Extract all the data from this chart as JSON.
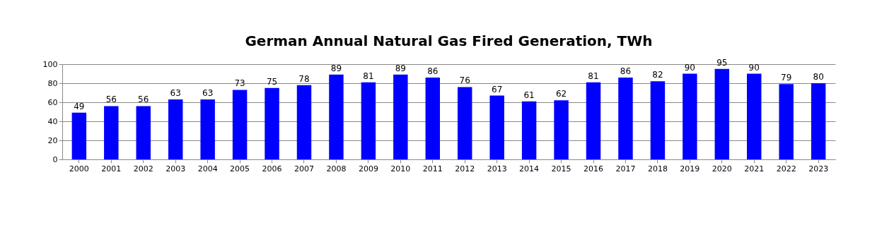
{
  "chart_data": {
    "type": "bar",
    "title": "German Annual Natural Gas Fired Generation, TWh",
    "categories": [
      "2000",
      "2001",
      "2002",
      "2003",
      "2004",
      "2005",
      "2006",
      "2007",
      "2008",
      "2009",
      "2010",
      "2011",
      "2012",
      "2013",
      "2014",
      "2015",
      "2016",
      "2017",
      "2018",
      "2019",
      "2020",
      "2021",
      "2022",
      "2023"
    ],
    "values": [
      49,
      56,
      56,
      63,
      63,
      73,
      75,
      78,
      89,
      81,
      89,
      86,
      76,
      67,
      61,
      62,
      81,
      86,
      82,
      90,
      95,
      90,
      79,
      80
    ],
    "color": "#0000ff",
    "ylim": [
      0,
      100
    ],
    "yticks": [
      0,
      20,
      40,
      60,
      80,
      100
    ],
    "grid": "y",
    "data_labels": true
  }
}
